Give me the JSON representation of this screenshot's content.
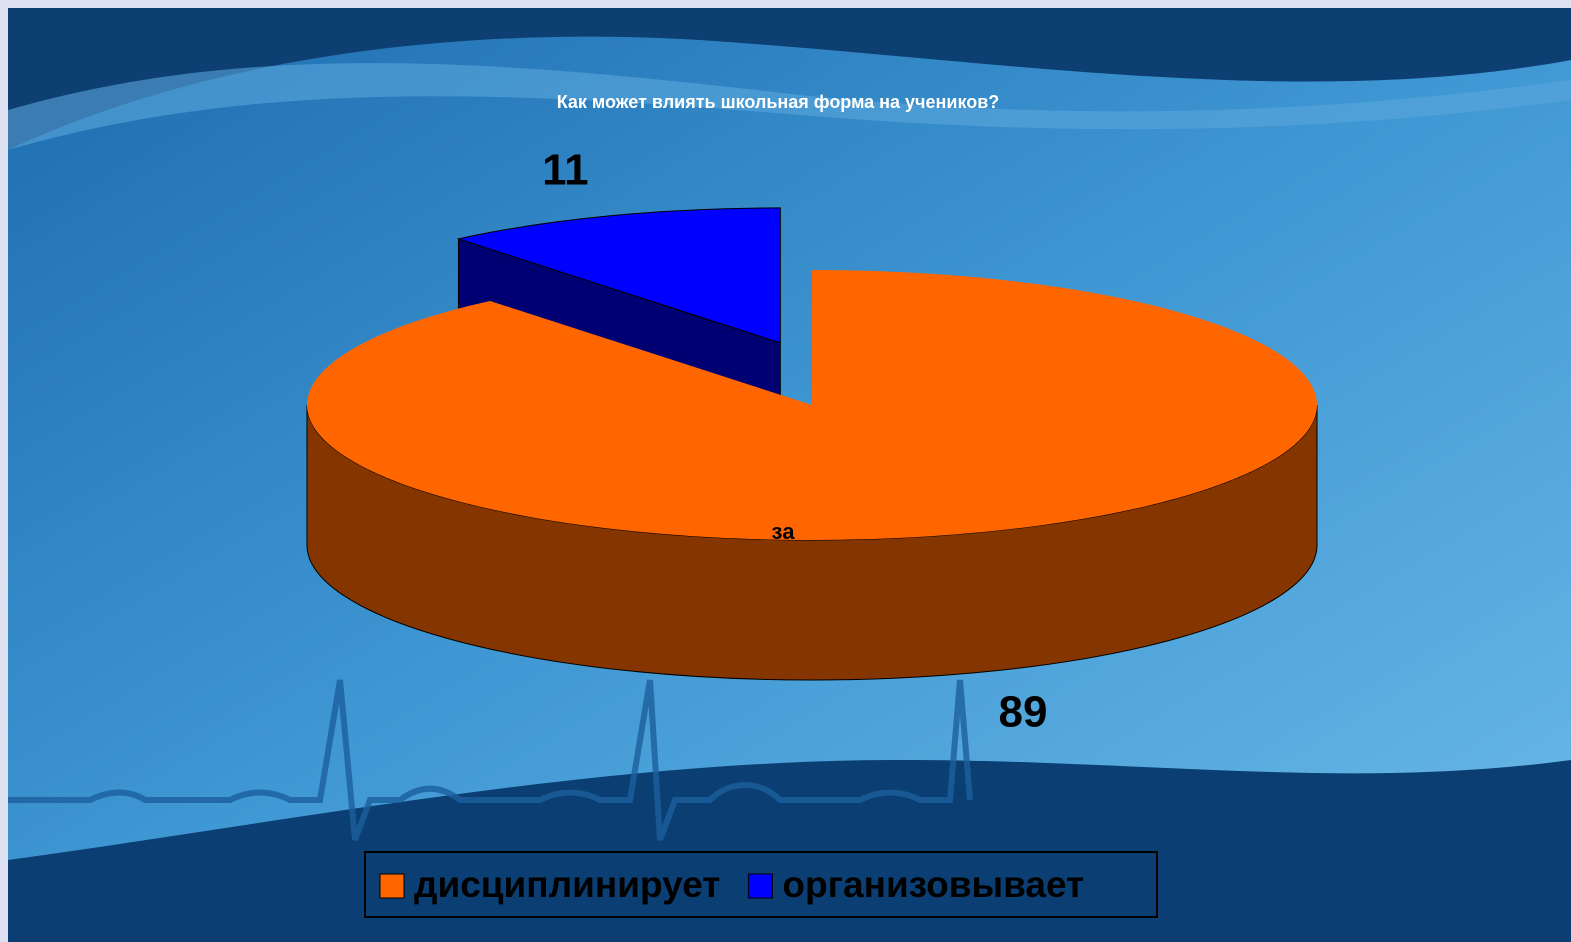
{
  "chart_data": {
    "type": "pie",
    "title": "Как может влиять школьная форма на учеников?",
    "series_name": "за",
    "categories": [
      "дисциплинирует",
      "организовывает"
    ],
    "values": [
      89,
      11
    ],
    "colors": [
      "#ff6600",
      "#0000ff"
    ],
    "legend": "bottom"
  }
}
